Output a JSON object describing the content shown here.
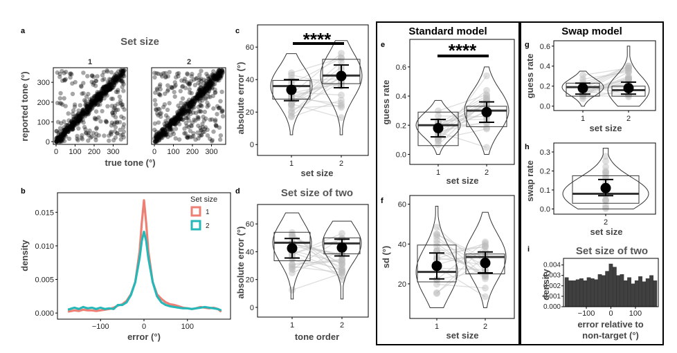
{
  "chart_data": [
    {
      "panel": "a",
      "type": "scatter",
      "title": "Set size",
      "facets": [
        "1",
        "2"
      ],
      "xlabel": "true tone (°)",
      "ylabel": "reported tone (°)",
      "xticks": [
        0,
        100,
        200,
        300
      ],
      "yticks": [
        0,
        100,
        200,
        300
      ],
      "xlim": [
        0,
        360
      ],
      "ylim": [
        0,
        360
      ],
      "point_color": "#000000"
    },
    {
      "panel": "b",
      "type": "line",
      "xlabel": "error (°)",
      "ylabel": "density",
      "xlim": [
        -180,
        180
      ],
      "ylim": [
        -0.0005,
        0.0175
      ],
      "xticks": [
        -100,
        0,
        100
      ],
      "yticks": [
        0.0,
        0.005,
        0.01,
        0.015
      ],
      "ytick_labels": [
        "0.000",
        "0.005",
        "0.010",
        "0.015"
      ],
      "legend_title": "Set size",
      "legend_position": "top-right",
      "series": [
        {
          "name": "1",
          "color": "#EE7F74",
          "x": [
            -175,
            -160,
            -150,
            -140,
            -130,
            -120,
            -110,
            -100,
            -90,
            -80,
            -70,
            -60,
            -50,
            -40,
            -30,
            -20,
            -10,
            -5,
            0,
            5,
            10,
            20,
            30,
            40,
            50,
            60,
            70,
            80,
            90,
            100,
            110,
            120,
            130,
            140,
            150,
            160,
            170,
            178
          ],
          "values": [
            0.0002,
            0.0004,
            0.0003,
            0.0005,
            0.0004,
            0.0004,
            0.0003,
            0.0004,
            0.0005,
            0.0006,
            0.0008,
            0.0011,
            0.0013,
            0.0018,
            0.0028,
            0.0046,
            0.0092,
            0.0135,
            0.0168,
            0.0135,
            0.0092,
            0.0046,
            0.0028,
            0.0021,
            0.0016,
            0.0013,
            0.0012,
            0.001,
            0.0008,
            0.0007,
            0.0006,
            0.0007,
            0.0009,
            0.0008,
            0.0007,
            0.0008,
            0.0006,
            0.0002
          ]
        },
        {
          "name": "2",
          "color": "#26B8B8",
          "x": [
            -175,
            -160,
            -150,
            -140,
            -130,
            -120,
            -110,
            -100,
            -90,
            -80,
            -70,
            -60,
            -50,
            -40,
            -30,
            -20,
            -10,
            -5,
            0,
            5,
            10,
            20,
            30,
            40,
            50,
            60,
            70,
            80,
            90,
            100,
            110,
            120,
            130,
            140,
            150,
            160,
            170,
            178
          ],
          "values": [
            0.0005,
            0.0008,
            0.0006,
            0.0009,
            0.0007,
            0.0008,
            0.0006,
            0.0008,
            0.0006,
            0.0007,
            0.0006,
            0.0012,
            0.0012,
            0.0016,
            0.0027,
            0.0046,
            0.0082,
            0.0108,
            0.0121,
            0.0108,
            0.0082,
            0.0046,
            0.0025,
            0.0016,
            0.0012,
            0.001,
            0.0009,
            0.0008,
            0.0007,
            0.0007,
            0.0006,
            0.0007,
            0.0008,
            0.0009,
            0.0008,
            0.0007,
            0.0006,
            0.0004
          ]
        }
      ]
    },
    {
      "panel": "c",
      "type": "violin",
      "xlabel": "set size",
      "ylabel": "absolute error (°)",
      "categories": [
        "1",
        "2"
      ],
      "ylim": [
        -5,
        72
      ],
      "yticks": [
        0,
        20,
        40,
        60
      ],
      "annotation": "****",
      "median": [
        36,
        42.5
      ],
      "quartiles": [
        [
          28,
          39.5
        ],
        [
          37.5,
          52.5
        ]
      ],
      "mean": [
        33.7,
        42.2
      ],
      "ci": [
        [
          27,
          40
        ],
        [
          35,
          49
        ]
      ],
      "range": [
        [
          6,
          56
        ],
        [
          6,
          64
        ]
      ]
    },
    {
      "panel": "d",
      "type": "violin",
      "title": "Set size of two",
      "xlabel": "tone order",
      "ylabel": "absolute error (°)",
      "categories": [
        "1",
        "2"
      ],
      "ylim": [
        -5,
        72
      ],
      "yticks": [
        0,
        20,
        40,
        60
      ],
      "median": [
        46.5,
        46
      ],
      "quartiles": [
        [
          33.5,
          54
        ],
        [
          38.5,
          50
        ]
      ],
      "mean": [
        42.5,
        43
      ],
      "ci": [
        [
          35.5,
          49.5
        ],
        [
          37,
          49
        ]
      ],
      "range": [
        [
          6,
          68
        ],
        [
          6,
          62
        ]
      ]
    },
    {
      "panel": "e",
      "type": "violin",
      "title": "Standard model",
      "xlabel": "set size",
      "ylabel": "guess rate",
      "categories": [
        "1",
        "2"
      ],
      "ylim": [
        -0.05,
        0.77
      ],
      "yticks": [
        0.0,
        0.2,
        0.4,
        0.6
      ],
      "ytick_labels": [
        "0.0",
        "0.2",
        "0.4",
        "0.6"
      ],
      "annotation": "****",
      "median": [
        0.2,
        0.3
      ],
      "quartiles": [
        [
          0.06,
          0.29
        ],
        [
          0.19,
          0.33
        ]
      ],
      "mean": [
        0.18,
        0.29
      ],
      "ci": [
        [
          0.12,
          0.24
        ],
        [
          0.22,
          0.36
        ]
      ],
      "range": [
        [
          0.0,
          0.37
        ],
        [
          0.0,
          0.6
        ]
      ]
    },
    {
      "panel": "f",
      "type": "violin",
      "xlabel": "set size",
      "ylabel": "sd (°)",
      "categories": [
        "1",
        "2"
      ],
      "ylim": [
        4,
        63
      ],
      "yticks": [
        20,
        40,
        60
      ],
      "median": [
        26,
        33.5
      ],
      "quartiles": [
        [
          21,
          39.5
        ],
        [
          25,
          35
        ]
      ],
      "mean": [
        29,
        30.5
      ],
      "ci": [
        [
          22.5,
          35.5
        ],
        [
          25.5,
          36
        ]
      ],
      "range": [
        [
          8,
          59
        ],
        [
          8,
          56
        ]
      ]
    },
    {
      "panel": "g",
      "type": "violin",
      "title": "Swap model",
      "xlabel": "set size",
      "ylabel": "guess rate",
      "categories": [
        "1",
        "2"
      ],
      "ylim": [
        -0.03,
        0.64
      ],
      "yticks": [
        0.0,
        0.2,
        0.4,
        0.6
      ],
      "ytick_labels": [
        "0.0",
        "0.2",
        "0.4",
        "0.6"
      ],
      "median": [
        0.19,
        0.16
      ],
      "quartiles": [
        [
          0.1,
          0.23
        ],
        [
          0.1,
          0.2
        ]
      ],
      "mean": [
        0.18,
        0.18
      ],
      "ci": [
        [
          0.12,
          0.23
        ],
        [
          0.12,
          0.24
        ]
      ],
      "range": [
        [
          0.0,
          0.35
        ],
        [
          0.0,
          0.6
        ]
      ]
    },
    {
      "panel": "h",
      "type": "violin",
      "xlabel": "set size",
      "ylabel": "swap rate",
      "categories": [
        "2"
      ],
      "ylim": [
        -0.02,
        0.34
      ],
      "yticks": [
        0.0,
        0.1,
        0.2,
        0.3
      ],
      "ytick_labels": [
        "0.0",
        "0.1",
        "0.2",
        "0.3"
      ],
      "median": [
        0.08
      ],
      "quartiles": [
        [
          0.03,
          0.175
        ]
      ],
      "mean": [
        0.11
      ],
      "ci": [
        [
          0.07,
          0.155
        ]
      ],
      "range": [
        [
          0.0,
          0.32
        ]
      ]
    },
    {
      "panel": "i",
      "type": "bar",
      "title": "Set size of two",
      "xlabel": "error relative to non-target (°)",
      "xlabel_lines": [
        "error relative to",
        "non-target (°)"
      ],
      "ylabel": "density",
      "xlim": [
        -187.5,
        187.5
      ],
      "ylim": [
        0,
        0.0045
      ],
      "xticks": [
        -100,
        0,
        100
      ],
      "yticks": [
        0.0,
        0.001,
        0.002,
        0.003,
        0.004
      ],
      "ytick_labels": [
        "0.000",
        "0.001",
        "0.002",
        "0.003",
        "0.004"
      ],
      "bin_width": 15,
      "x": [
        -180,
        -165,
        -150,
        -135,
        -120,
        -105,
        -90,
        -75,
        -60,
        -45,
        -30,
        -15,
        0,
        15,
        30,
        45,
        60,
        75,
        90,
        105,
        120,
        135,
        150,
        165,
        180
      ],
      "values": [
        0.0028,
        0.0025,
        0.0025,
        0.0026,
        0.0027,
        0.0025,
        0.0028,
        0.0027,
        0.0026,
        0.0031,
        0.003,
        0.0034,
        0.0041,
        0.0038,
        0.003,
        0.0031,
        0.0025,
        0.0028,
        0.0022,
        0.0025,
        0.0029,
        0.0024,
        0.0027,
        0.003,
        0.0025
      ],
      "bar_color": "#404040"
    }
  ],
  "labels": {
    "a": "a",
    "b": "b",
    "c": "c",
    "d": "d",
    "e": "e",
    "f": "f",
    "g": "g",
    "h": "h",
    "i": "i"
  }
}
